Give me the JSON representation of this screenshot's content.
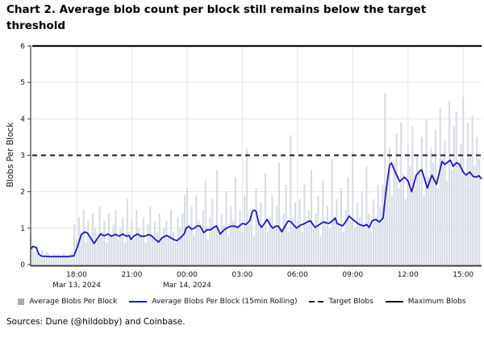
{
  "title": "Chart 2. Average blob count per block still remains below the target threshold",
  "source_note": "Sources: Dune (@hildobby) and Coinbase.",
  "colors": {
    "background": "#ffffff",
    "grid": "#e4e4e6",
    "axis": "#3c3c3c",
    "tick_text": "#111111",
    "bar_fill": "#d7dbe3",
    "rolling_line": "#1a18cc",
    "target_line": "#1a1a1a",
    "maximum_line": "#111111"
  },
  "chart_data": {
    "type": "line",
    "title": "Chart 2. Average blob count per block still remains below the target threshold",
    "xlabel": "",
    "ylabel": "Blobs Per Block",
    "ylim": [
      0,
      6
    ],
    "yticks": [
      0,
      1,
      2,
      3,
      4,
      5,
      6
    ],
    "grid_y": [
      1,
      2,
      4,
      5
    ],
    "grid": "on",
    "legend_position": "bottom",
    "xlim_hours": [
      0,
      24.5
    ],
    "xticks": [
      {
        "t": 2.5,
        "label": "18:00",
        "sublabel": "Mar 13, 2024"
      },
      {
        "t": 5.5,
        "label": "21:00"
      },
      {
        "t": 8.5,
        "label": "00:00",
        "sublabel": "Mar 14, 2024"
      },
      {
        "t": 11.5,
        "label": "03:00"
      },
      {
        "t": 14.5,
        "label": "06:00"
      },
      {
        "t": 17.5,
        "label": "09:00"
      },
      {
        "t": 20.5,
        "label": "12:00"
      },
      {
        "t": 23.5,
        "label": "15:00"
      }
    ],
    "series": [
      {
        "name": "Average Blobs Per Block",
        "type": "bar",
        "color": "#d7dbe3",
        "legend_color": "#a6abb4",
        "t0": 0,
        "dt": 0.125,
        "values": [
          0.85,
          0.45,
          0.35,
          0.5,
          0.3,
          0.4,
          0.28,
          0.33,
          0.3,
          0.25,
          0.32,
          0.28,
          0.3,
          0.26,
          0.32,
          0.28,
          0.25,
          0.3,
          0.35,
          1.1,
          0.7,
          1.3,
          0.9,
          1.5,
          0.6,
          1.2,
          0.8,
          1.4,
          1.0,
          0.7,
          1.6,
          0.9,
          1.2,
          0.6,
          1.4,
          0.8,
          1.1,
          1.5,
          0.7,
          1.0,
          1.3,
          0.6,
          1.8,
          0.9,
          1.2,
          0.7,
          1.5,
          1.0,
          0.8,
          1.3,
          0.6,
          1.1,
          1.6,
          0.8,
          1.2,
          0.9,
          1.4,
          0.7,
          1.0,
          1.2,
          0.8,
          1.5,
          0.9,
          0.6,
          1.3,
          1.0,
          1.4,
          1.9,
          2.1,
          1.0,
          1.6,
          0.8,
          1.9,
          1.2,
          0.9,
          1.5,
          2.3,
          0.7,
          1.3,
          1.8,
          1.0,
          2.6,
          0.9,
          1.4,
          1.1,
          2.0,
          0.8,
          1.6,
          1.2,
          2.4,
          1.0,
          1.5,
          0.9,
          1.9,
          3.2,
          1.1,
          1.4,
          0.8,
          2.1,
          1.2,
          1.7,
          1.0,
          2.5,
          0.9,
          1.3,
          1.9,
          1.1,
          1.6,
          2.8,
          1.0,
          1.4,
          2.2,
          0.9,
          3.55,
          1.3,
          1.7,
          1.2,
          1.8,
          0.9,
          2.2,
          1.1,
          1.5,
          2.6,
          1.0,
          1.4,
          1.9,
          0.8,
          2.3,
          1.2,
          1.6,
          1.0,
          2.9,
          1.3,
          1.8,
          1.1,
          2.1,
          0.9,
          1.5,
          2.4,
          1.2,
          3.1,
          1.0,
          1.7,
          1.3,
          2.0,
          1.1,
          2.7,
          1.4,
          0.9,
          1.8,
          1.2,
          2.2,
          1.6,
          2.2,
          4.7,
          2.4,
          3.2,
          1.9,
          2.8,
          3.6,
          2.1,
          3.9,
          2.5,
          1.8,
          3.3,
          2.7,
          3.8,
          2.2,
          3.0,
          2.6,
          3.5,
          1.9,
          4.0,
          2.4,
          3.2,
          2.8,
          3.7,
          2.1,
          4.3,
          2.9,
          3.4,
          2.3,
          4.5,
          2.6,
          3.8,
          4.2,
          2.8,
          3.3,
          4.6,
          2.5,
          3.9,
          3.0,
          4.1,
          2.7,
          3.5,
          2.9
        ]
      },
      {
        "name": "Average Blobs Per Block (15min Rolling)",
        "type": "line",
        "color": "#1a18cc",
        "points": [
          [
            0,
            0.42
          ],
          [
            0.12,
            0.5
          ],
          [
            0.3,
            0.47
          ],
          [
            0.45,
            0.28
          ],
          [
            0.6,
            0.23
          ],
          [
            1.2,
            0.22
          ],
          [
            2,
            0.22
          ],
          [
            2.35,
            0.24
          ],
          [
            2.55,
            0.5
          ],
          [
            2.75,
            0.82
          ],
          [
            2.95,
            0.9
          ],
          [
            3.1,
            0.86
          ],
          [
            3.45,
            0.58
          ],
          [
            3.65,
            0.74
          ],
          [
            3.8,
            0.84
          ],
          [
            4,
            0.79
          ],
          [
            4.2,
            0.84
          ],
          [
            4.4,
            0.78
          ],
          [
            4.6,
            0.83
          ],
          [
            4.8,
            0.78
          ],
          [
            5,
            0.84
          ],
          [
            5.2,
            0.78
          ],
          [
            5.35,
            0.8
          ],
          [
            5.45,
            0.69
          ],
          [
            5.6,
            0.78
          ],
          [
            5.8,
            0.84
          ],
          [
            6,
            0.78
          ],
          [
            6.2,
            0.78
          ],
          [
            6.4,
            0.82
          ],
          [
            6.55,
            0.8
          ],
          [
            6.75,
            0.7
          ],
          [
            6.95,
            0.62
          ],
          [
            7.15,
            0.74
          ],
          [
            7.4,
            0.8
          ],
          [
            7.6,
            0.74
          ],
          [
            7.8,
            0.68
          ],
          [
            7.95,
            0.66
          ],
          [
            8.15,
            0.74
          ],
          [
            8.35,
            0.85
          ],
          [
            8.45,
            1
          ],
          [
            8.6,
            1.05
          ],
          [
            8.75,
            0.97
          ],
          [
            8.9,
            1
          ],
          [
            9.05,
            1.06
          ],
          [
            9.2,
            1.06
          ],
          [
            9.4,
            0.88
          ],
          [
            9.6,
            0.96
          ],
          [
            9.75,
            0.95
          ],
          [
            9.95,
            1.02
          ],
          [
            10.1,
            1.06
          ],
          [
            10.3,
            0.84
          ],
          [
            10.5,
            0.95
          ],
          [
            10.65,
            1
          ],
          [
            10.85,
            1.05
          ],
          [
            11.05,
            1.06
          ],
          [
            11.25,
            1.02
          ],
          [
            11.5,
            1.13
          ],
          [
            11.7,
            1.1
          ],
          [
            11.9,
            1.2
          ],
          [
            12.05,
            1.46
          ],
          [
            12.15,
            1.5
          ],
          [
            12.25,
            1.46
          ],
          [
            12.4,
            1.13
          ],
          [
            12.55,
            1.02
          ],
          [
            12.85,
            1.24
          ],
          [
            13,
            1.1
          ],
          [
            13.15,
            1
          ],
          [
            13.3,
            1.05
          ],
          [
            13.45,
            1.06
          ],
          [
            13.65,
            0.9
          ],
          [
            13.85,
            1.08
          ],
          [
            14,
            1.2
          ],
          [
            14.15,
            1.17
          ],
          [
            14.3,
            1.08
          ],
          [
            14.45,
            1
          ],
          [
            14.65,
            1.08
          ],
          [
            14.9,
            1.13
          ],
          [
            15.05,
            1.18
          ],
          [
            15.2,
            1.2
          ],
          [
            15.45,
            1.02
          ],
          [
            15.7,
            1.1
          ],
          [
            15.9,
            1.17
          ],
          [
            16.05,
            1.15
          ],
          [
            16.2,
            1.13
          ],
          [
            16.4,
            1.2
          ],
          [
            16.55,
            1.28
          ],
          [
            16.65,
            1.13
          ],
          [
            16.95,
            1.06
          ],
          [
            17.15,
            1.2
          ],
          [
            17.3,
            1.33
          ],
          [
            17.5,
            1.24
          ],
          [
            17.85,
            1.1
          ],
          [
            18.1,
            1.06
          ],
          [
            18.25,
            1.1
          ],
          [
            18.4,
            1.02
          ],
          [
            18.55,
            1.2
          ],
          [
            18.75,
            1.24
          ],
          [
            18.95,
            1.17
          ],
          [
            19.15,
            1.28
          ],
          [
            19.3,
            2
          ],
          [
            19.5,
            2.72
          ],
          [
            19.6,
            2.79
          ],
          [
            19.8,
            2.55
          ],
          [
            20.05,
            2.28
          ],
          [
            20.3,
            2.4
          ],
          [
            20.5,
            2.3
          ],
          [
            20.7,
            2
          ],
          [
            20.95,
            2.45
          ],
          [
            21.15,
            2.57
          ],
          [
            21.25,
            2.6
          ],
          [
            21.4,
            2.35
          ],
          [
            21.55,
            2.1
          ],
          [
            21.8,
            2.45
          ],
          [
            22.05,
            2.2
          ],
          [
            22.35,
            2.83
          ],
          [
            22.5,
            2.75
          ],
          [
            22.8,
            2.87
          ],
          [
            22.95,
            2.7
          ],
          [
            23.15,
            2.8
          ],
          [
            23.3,
            2.75
          ],
          [
            23.5,
            2.54
          ],
          [
            23.65,
            2.46
          ],
          [
            23.85,
            2.54
          ],
          [
            24.05,
            2.42
          ],
          [
            24.2,
            2.4
          ],
          [
            24.35,
            2.44
          ],
          [
            24.5,
            2.35
          ]
        ]
      },
      {
        "name": "Target Blobs",
        "type": "hline",
        "value": 3,
        "line_style": "dashed",
        "color": "#1a1a1a"
      },
      {
        "name": "Maximum Blobs",
        "type": "hline",
        "value": 6,
        "line_style": "solid",
        "color": "#111111"
      }
    ]
  }
}
